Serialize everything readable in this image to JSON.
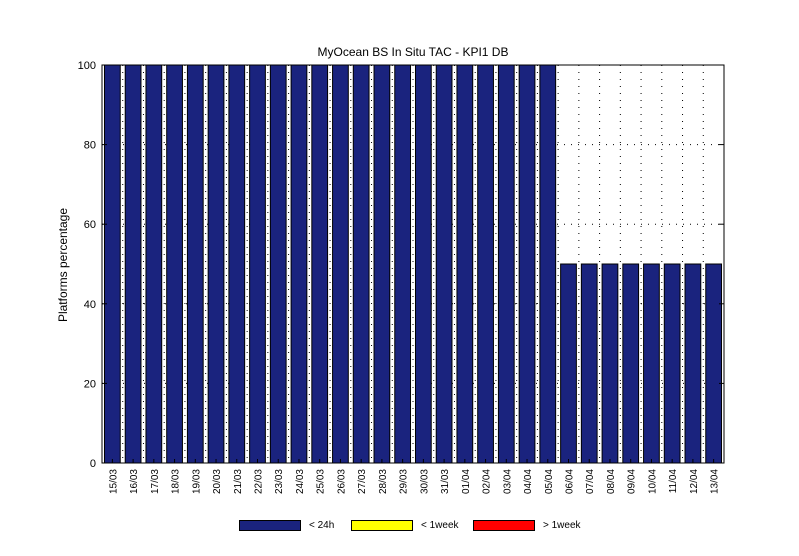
{
  "chart_data": {
    "type": "bar",
    "title": "MyOcean  BS In Situ TAC - KPI1  DB",
    "xlabel": "",
    "ylabel": "Platforms percentage",
    "ylim": [
      0,
      100
    ],
    "yticks": [
      0,
      20,
      40,
      60,
      80,
      100
    ],
    "grid": true,
    "stacked": true,
    "legend_position": "bottom",
    "categories": [
      "15/03",
      "16/03",
      "17/03",
      "18/03",
      "19/03",
      "20/03",
      "21/03",
      "22/03",
      "23/03",
      "24/03",
      "25/03",
      "26/03",
      "27/03",
      "28/03",
      "29/03",
      "30/03",
      "31/03",
      "01/04",
      "02/04",
      "03/04",
      "04/04",
      "05/04",
      "06/04",
      "07/04",
      "08/04",
      "09/04",
      "10/04",
      "11/04",
      "12/04",
      "13/04"
    ],
    "series": [
      {
        "name": "< 24h",
        "color": "#1a237e",
        "values": [
          100,
          100,
          100,
          100,
          100,
          100,
          100,
          100,
          100,
          100,
          100,
          100,
          100,
          100,
          100,
          100,
          100,
          100,
          100,
          100,
          100,
          100,
          50,
          50,
          50,
          50,
          50,
          50,
          50,
          50
        ]
      },
      {
        "name": "< 1week",
        "color": "#ffff00",
        "values": [
          0,
          0,
          0,
          0,
          0,
          0,
          0,
          0,
          0,
          0,
          0,
          0,
          0,
          0,
          0,
          0,
          0,
          0,
          0,
          0,
          0,
          0,
          0,
          0,
          0,
          0,
          0,
          0,
          0,
          0
        ]
      },
      {
        "name": "> 1week",
        "color": "#ff0000",
        "values": [
          0,
          0,
          0,
          0,
          0,
          0,
          0,
          0,
          0,
          0,
          0,
          0,
          0,
          0,
          0,
          0,
          0,
          0,
          0,
          0,
          0,
          0,
          0,
          0,
          0,
          0,
          0,
          0,
          0,
          0
        ]
      }
    ]
  }
}
